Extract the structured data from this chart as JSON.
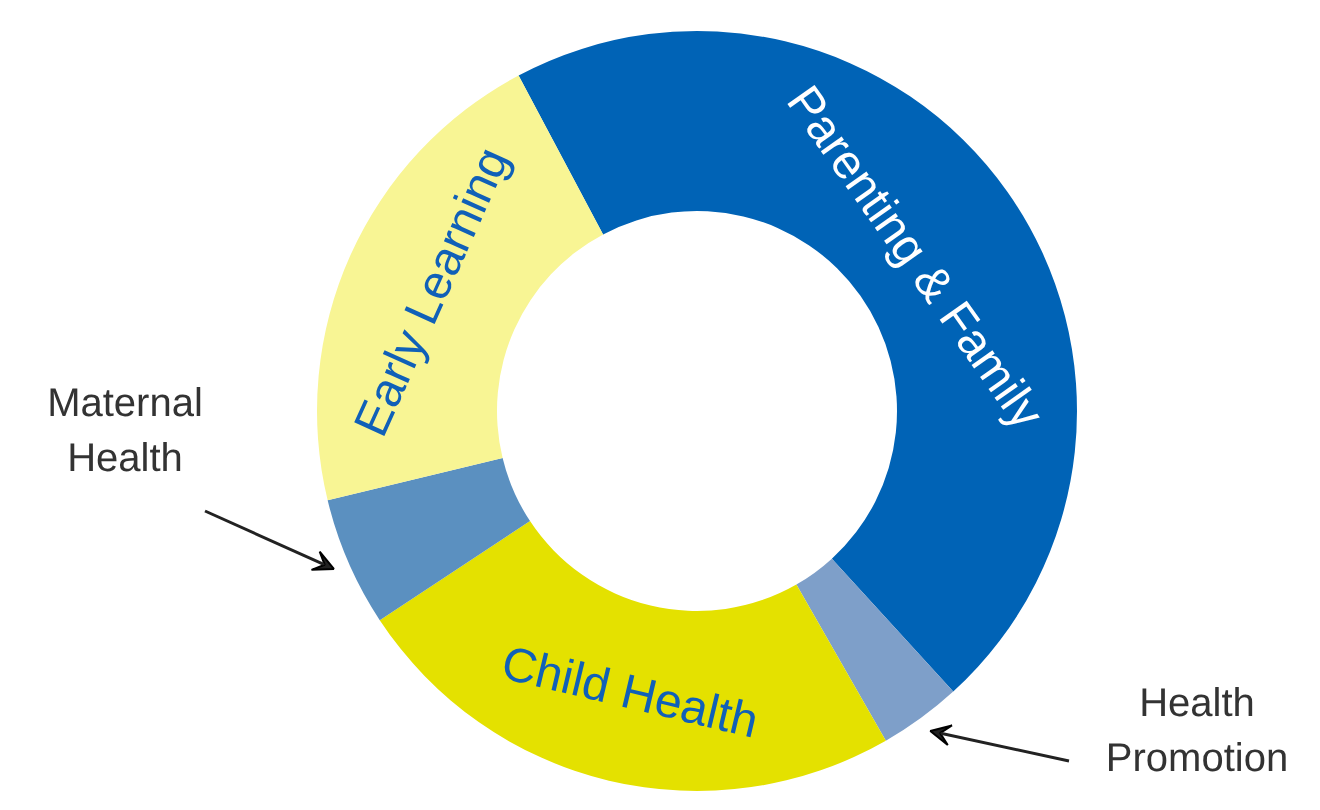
{
  "chart_data": {
    "type": "donut",
    "categories": [
      "Parenting & Family",
      "Health Promotion",
      "Child Health",
      "Maternal Health",
      "Early Learning"
    ],
    "values": [
      46,
      3.5,
      24,
      5.5,
      21
    ],
    "colors": [
      "#0063b6",
      "#7e9fc9",
      "#e4e100",
      "#5b90c0",
      "#f8f594"
    ]
  }
}
